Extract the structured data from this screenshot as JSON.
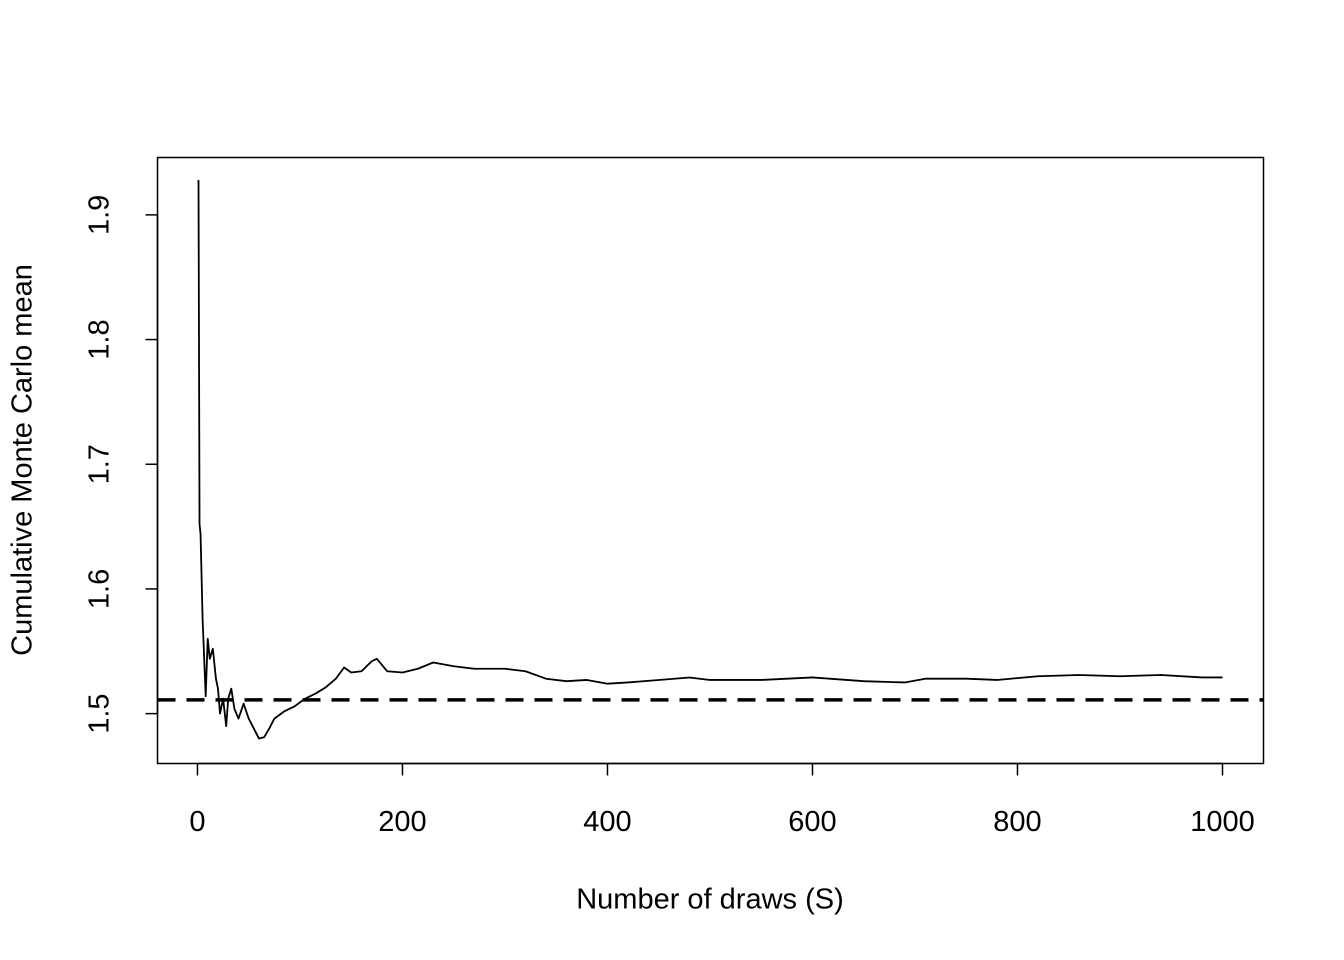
{
  "chart_data": {
    "type": "line",
    "xlabel": "Number of draws (S)",
    "ylabel": "Cumulative Monte Carlo mean",
    "x": [
      1,
      2,
      3,
      5,
      8,
      10,
      12,
      15,
      18,
      20,
      22,
      25,
      28,
      30,
      33,
      36,
      40,
      45,
      50,
      55,
      60,
      65,
      70,
      75,
      85,
      95,
      105,
      115,
      125,
      135,
      143,
      150,
      160,
      170,
      175,
      185,
      200,
      215,
      230,
      250,
      270,
      300,
      320,
      340,
      360,
      380,
      400,
      420,
      450,
      480,
      500,
      550,
      600,
      650,
      690,
      710,
      750,
      780,
      820,
      860,
      900,
      940,
      980,
      1000
    ],
    "values": [
      1.928,
      1.652,
      1.644,
      1.576,
      1.514,
      1.56,
      1.544,
      1.552,
      1.528,
      1.52,
      1.5,
      1.512,
      1.49,
      1.512,
      1.52,
      1.504,
      1.496,
      1.508,
      1.496,
      1.488,
      1.48,
      1.481,
      1.488,
      1.496,
      1.502,
      1.506,
      1.512,
      1.516,
      1.521,
      1.528,
      1.537,
      1.533,
      1.534,
      1.542,
      1.544,
      1.534,
      1.533,
      1.536,
      1.541,
      1.538,
      1.536,
      1.536,
      1.534,
      1.528,
      1.526,
      1.527,
      1.524,
      1.525,
      1.527,
      1.529,
      1.527,
      1.527,
      1.529,
      1.526,
      1.525,
      1.528,
      1.528,
      1.527,
      1.53,
      1.531,
      1.53,
      1.531,
      1.529,
      1.529
    ],
    "color": "#000000",
    "reference_line": {
      "value": 1.511,
      "color": "#000000",
      "style": "dashed"
    },
    "xlim": [
      -39,
      1040
    ],
    "ylim": [
      1.46,
      1.946
    ],
    "xticks": [
      0,
      200,
      400,
      600,
      800,
      1000
    ],
    "yticks": [
      1.5,
      1.6,
      1.7,
      1.8,
      1.9
    ]
  }
}
